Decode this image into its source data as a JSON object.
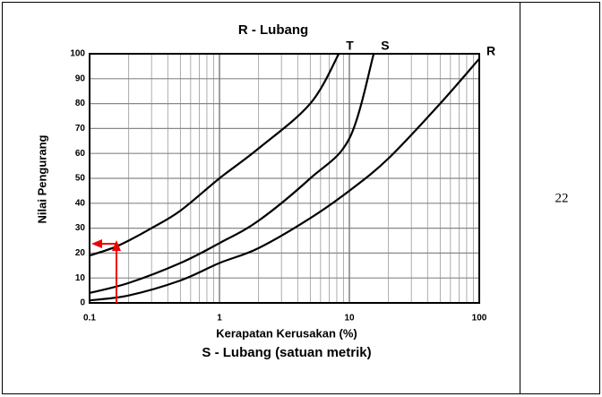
{
  "chart_data": {
    "type": "line",
    "title": "R - Lubang",
    "subtitle": "S - Lubang (satuan metrik)",
    "x_label": "Kerapatan Kerusakan (%)",
    "y_label": "Nilai Pengurang",
    "xscale": "log",
    "xlim": [
      0.1,
      100
    ],
    "xticks": [
      0.1,
      1,
      10,
      100
    ],
    "ylim": [
      0,
      100
    ],
    "yticks": [
      0,
      10,
      20,
      30,
      40,
      50,
      60,
      70,
      80,
      90,
      100
    ],
    "grid": true,
    "series": [
      {
        "name": "T",
        "color": "#000000",
        "x": [
          0.1,
          0.15,
          0.2,
          0.3,
          0.5,
          1,
          2,
          5,
          8.3
        ],
        "values": [
          19,
          22,
          25,
          30,
          37,
          50,
          62,
          80,
          100
        ]
      },
      {
        "name": "S",
        "color": "#000000",
        "x": [
          0.1,
          0.2,
          0.5,
          1,
          2,
          5,
          10,
          15.4
        ],
        "values": [
          4,
          8,
          16,
          24,
          33,
          50,
          66,
          100
        ]
      },
      {
        "name": "R",
        "color": "#000000",
        "x": [
          0.1,
          0.2,
          0.5,
          1,
          2,
          5,
          10,
          20,
          50,
          100
        ],
        "values": [
          1,
          3,
          9,
          16,
          22,
          34,
          45,
          58,
          80,
          98
        ]
      }
    ]
  },
  "table_cell": "22"
}
